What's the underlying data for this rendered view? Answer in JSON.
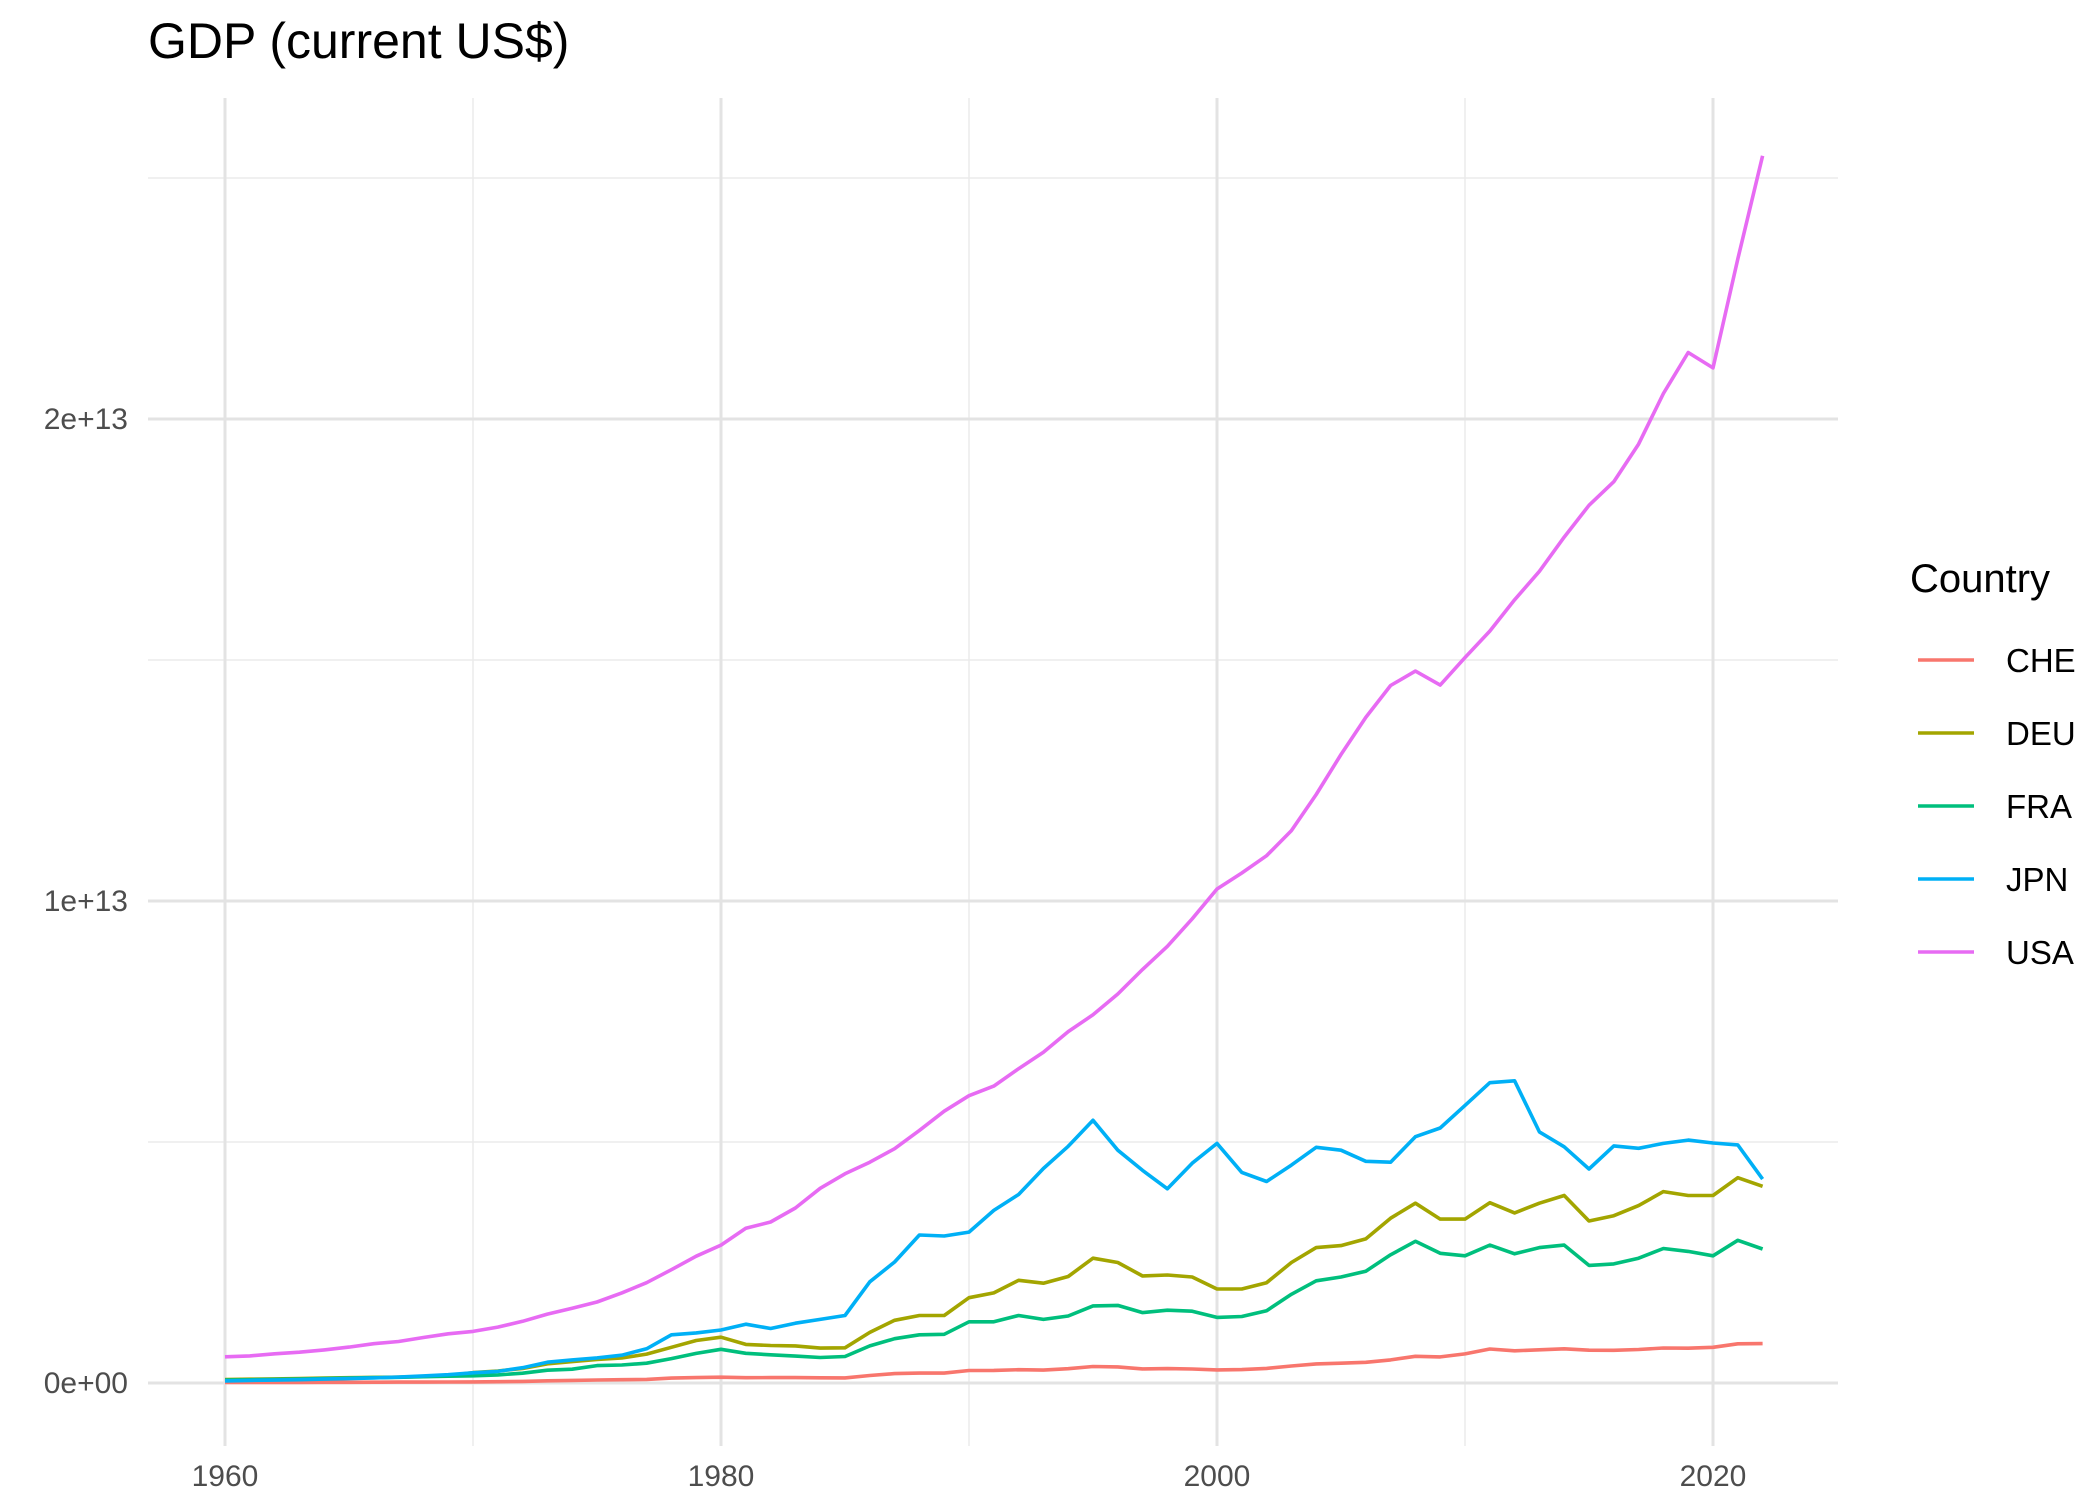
{
  "chart_data": {
    "type": "line",
    "title": "GDP (current US$)",
    "xlabel": "",
    "ylabel": "",
    "x_ticks": [
      "1960",
      "1980",
      "2000",
      "2020"
    ],
    "y_ticks": [
      "0e+00",
      "1e+13",
      "2e+13"
    ],
    "xlim": [
      1960,
      2022
    ],
    "ylim": [
      0,
      26000000000000.0
    ],
    "grid": true,
    "legend_title": "Country",
    "legend_position": "right",
    "x": [
      1960,
      1961,
      1962,
      1963,
      1964,
      1965,
      1966,
      1967,
      1968,
      1969,
      1970,
      1971,
      1972,
      1973,
      1974,
      1975,
      1976,
      1977,
      1978,
      1979,
      1980,
      1981,
      1982,
      1983,
      1984,
      1985,
      1986,
      1987,
      1988,
      1989,
      1990,
      1991,
      1992,
      1993,
      1994,
      1995,
      1996,
      1997,
      1998,
      1999,
      2000,
      2001,
      2002,
      2003,
      2004,
      2005,
      2006,
      2007,
      2008,
      2009,
      2010,
      2011,
      2012,
      2013,
      2014,
      2015,
      2016,
      2017,
      2018,
      2019,
      2020,
      2021,
      2022
    ],
    "series": [
      {
        "name": "CHE",
        "color": "#F8766D",
        "values": [
          9500000000.0,
          10700000000.0,
          11900000000.0,
          13000000000.0,
          14300000000.0,
          15400000000.0,
          16500000000.0,
          17900000000.0,
          19300000000.0,
          21000000000.0,
          23000000000.0,
          27000000000.0,
          34000000000.0,
          45000000000.0,
          53000000000.0,
          63000000000.0,
          68000000000.0,
          74000000000.0,
          101000000000.0,
          113000000000.0,
          120000000000.0,
          109000000000.0,
          112000000000.0,
          112000000000.0,
          107000000000.0,
          106000000000.0,
          155000000000.0,
          194000000000.0,
          206000000000.0,
          206000000000.0,
          260000000000.0,
          262000000000.0,
          276000000000.0,
          267000000000.0,
          297000000000.0,
          343000000000.0,
          335000000000.0,
          292000000000.0,
          298000000000.0,
          291000000000.0,
          272000000000.0,
          279000000000.0,
          303000000000.0,
          353000000000.0,
          396000000000.0,
          410000000000.0,
          430000000000.0,
          480000000000.0,
          554000000000.0,
          541000000000.0,
          604000000000.0,
          705000000000.0,
          668000000000.0,
          689000000000.0,
          709000000000.0,
          680000000000.0,
          679000000000.0,
          695000000000.0,
          726000000000.0,
          721000000000.0,
          741000000000.0,
          813000000000.0,
          818000000000.0
        ]
      },
      {
        "name": "DEU",
        "color": "#A3A500",
        "values": [
          72000000000.0,
          79000000000.0,
          86000000000.0,
          92000000000.0,
          101000000000.0,
          110000000000.0,
          117000000000.0,
          121000000000.0,
          134000000000.0,
          154000000000.0,
          215000000000.0,
          249000000000.0,
          300000000000.0,
          398000000000.0,
          445000000000.0,
          490000000000.0,
          519000000000.0,
          600000000000.0,
          740000000000.0,
          882000000000.0,
          950000000000.0,
          800000000000.0,
          778000000000.0,
          770000000000.0,
          725000000000.0,
          730000000000.0,
          1050000000000.0,
          1300000000000.0,
          1400000000000.0,
          1400000000000.0,
          1770000000000.0,
          1870000000000.0,
          2130000000000.0,
          2070000000000.0,
          2210000000000.0,
          2590000000000.0,
          2500000000000.0,
          2220000000000.0,
          2240000000000.0,
          2200000000000.0,
          1950000000000.0,
          1950000000000.0,
          2080000000000.0,
          2500000000000.0,
          2810000000000.0,
          2850000000000.0,
          2990000000000.0,
          3420000000000.0,
          3730000000000.0,
          3400000000000.0,
          3400000000000.0,
          3740000000000.0,
          3530000000000.0,
          3730000000000.0,
          3890000000000.0,
          3360000000000.0,
          3470000000000.0,
          3680000000000.0,
          3970000000000.0,
          3890000000000.0,
          3890000000000.0,
          4260000000000.0,
          4080000000000.0
        ]
      },
      {
        "name": "FRA",
        "color": "#00BF7D",
        "values": [
          62000000000.0,
          67000000000.0,
          75000000000.0,
          84000000000.0,
          94000000000.0,
          102000000000.0,
          111000000000.0,
          119000000000.0,
          130000000000.0,
          141000000000.0,
          149000000000.0,
          169000000000.0,
          203000000000.0,
          265000000000.0,
          286000000000.0,
          360000000000.0,
          373000000000.0,
          410000000000.0,
          507000000000.0,
          614000000000.0,
          700000000000.0,
          616000000000.0,
          585000000000.0,
          559000000000.0,
          530000000000.0,
          550000000000.0,
          770000000000.0,
          920000000000.0,
          1000000000000.0,
          1010000000000.0,
          1270000000000.0,
          1270000000000.0,
          1400000000000.0,
          1320000000000.0,
          1390000000000.0,
          1600000000000.0,
          1610000000000.0,
          1460000000000.0,
          1510000000000.0,
          1490000000000.0,
          1360000000000.0,
          1380000000000.0,
          1500000000000.0,
          1840000000000.0,
          2120000000000.0,
          2200000000000.0,
          2320000000000.0,
          2660000000000.0,
          2940000000000.0,
          2690000000000.0,
          2640000000000.0,
          2860000000000.0,
          2680000000000.0,
          2810000000000.0,
          2860000000000.0,
          2440000000000.0,
          2470000000000.0,
          2590000000000.0,
          2790000000000.0,
          2730000000000.0,
          2640000000000.0,
          2960000000000.0,
          2780000000000.0
        ]
      },
      {
        "name": "JPN",
        "color": "#00B0F6",
        "values": [
          44300000000.0,
          53500000000.0,
          60700000000.0,
          69500000000.0,
          81700000000.0,
          90900000000.0,
          106000000000.0,
          123000000000.0,
          147000000000.0,
          172000000000.0,
          212000000000.0,
          240000000000.0,
          318000000000.0,
          432000000000.0,
          479000000000.0,
          520000000000.0,
          576000000000.0,
          709000000000.0,
          1000000000000.0,
          1040000000000.0,
          1100000000000.0,
          1220000000000.0,
          1130000000000.0,
          1240000000000.0,
          1320000000000.0,
          1400000000000.0,
          2100000000000.0,
          2510000000000.0,
          3070000000000.0,
          3050000000000.0,
          3130000000000.0,
          3580000000000.0,
          3910000000000.0,
          4450000000000.0,
          4910000000000.0,
          5450000000000.0,
          4830000000000.0,
          4410000000000.0,
          4030000000000.0,
          4560000000000.0,
          4970000000000.0,
          4370000000000.0,
          4180000000000.0,
          4520000000000.0,
          4890000000000.0,
          4830000000000.0,
          4600000000000.0,
          4580000000000.0,
          5110000000000.0,
          5290000000000.0,
          5760000000000.0,
          6230000000000.0,
          6270000000000.0,
          5210000000000.0,
          4900000000000.0,
          4440000000000.0,
          4920000000000.0,
          4870000000000.0,
          4970000000000.0,
          5040000000000.0,
          4980000000000.0,
          4940000000000.0,
          4230000000000.0
        ]
      },
      {
        "name": "USA",
        "color": "#E76BF3",
        "values": [
          543000000000.0,
          563000000000.0,
          605000000000.0,
          639000000000.0,
          686000000000.0,
          744000000000.0,
          815000000000.0,
          862000000000.0,
          943000000000.0,
          1020000000000.0,
          1070000000000.0,
          1160000000000.0,
          1280000000000.0,
          1430000000000.0,
          1550000000000.0,
          1680000000000.0,
          1870000000000.0,
          2080000000000.0,
          2350000000000.0,
          2630000000000.0,
          2860000000000.0,
          3210000000000.0,
          3340000000000.0,
          3630000000000.0,
          4040000000000.0,
          4340000000000.0,
          4580000000000.0,
          4860000000000.0,
          5240000000000.0,
          5640000000000.0,
          5960000000000.0,
          6160000000000.0,
          6520000000000.0,
          6860000000000.0,
          7290000000000.0,
          7640000000000.0,
          8070000000000.0,
          8580000000000.0,
          9060000000000.0,
          9630000000000.0,
          10250000000000.0,
          10580000000000.0,
          10940000000000.0,
          11460000000000.0,
          12210000000000.0,
          13040000000000.0,
          13810000000000.0,
          14470000000000.0,
          14770000000000.0,
          14480000000000.0,
          15050000000000.0,
          15600000000000.0,
          16250000000000.0,
          16840000000000.0,
          17550000000000.0,
          18210000000000.0,
          18700000000000.0,
          19480000000000.0,
          20530000000000.0,
          21380000000000.0,
          21060000000000.0,
          23320000000000.0,
          25460000000000.0
        ]
      }
    ]
  }
}
